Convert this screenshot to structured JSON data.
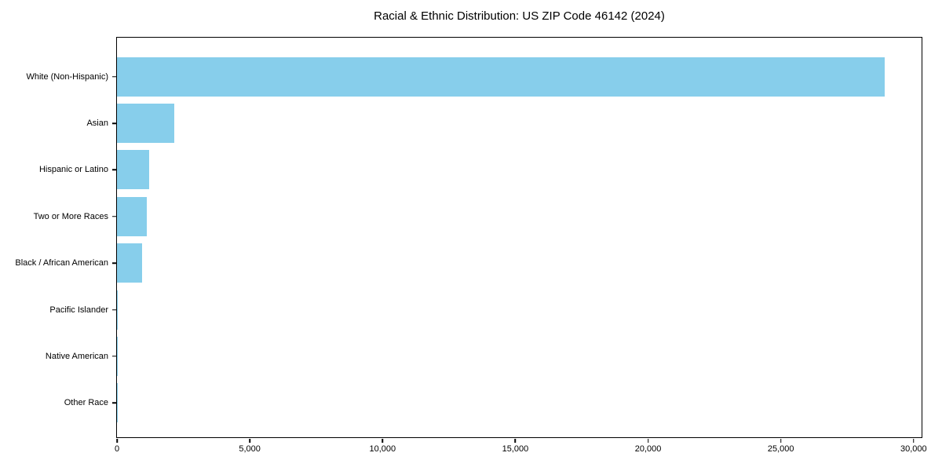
{
  "chart_data": {
    "type": "bar",
    "orientation": "horizontal",
    "title": "Racial & Ethnic Distribution: US ZIP Code 46142 (2024)",
    "categories": [
      "White (Non-Hispanic)",
      "Asian",
      "Hispanic or Latino",
      "Two or More Races",
      "Black / African American",
      "Pacific Islander",
      "Native American",
      "Other Race"
    ],
    "values": [
      28900,
      2160,
      1200,
      1110,
      935,
      30,
      20,
      10
    ],
    "xlabel": "",
    "ylabel": "",
    "xlim": [
      0,
      30300
    ],
    "x_ticks": [
      0,
      5000,
      10000,
      15000,
      20000,
      25000,
      30000
    ],
    "x_tick_labels": [
      "0",
      "5,000",
      "10,000",
      "15,000",
      "20,000",
      "25,000",
      "30,000"
    ],
    "bar_color": "#87CEEB",
    "axis_color": "#000000",
    "text_color": "#000000",
    "grid": false,
    "legend": null
  }
}
